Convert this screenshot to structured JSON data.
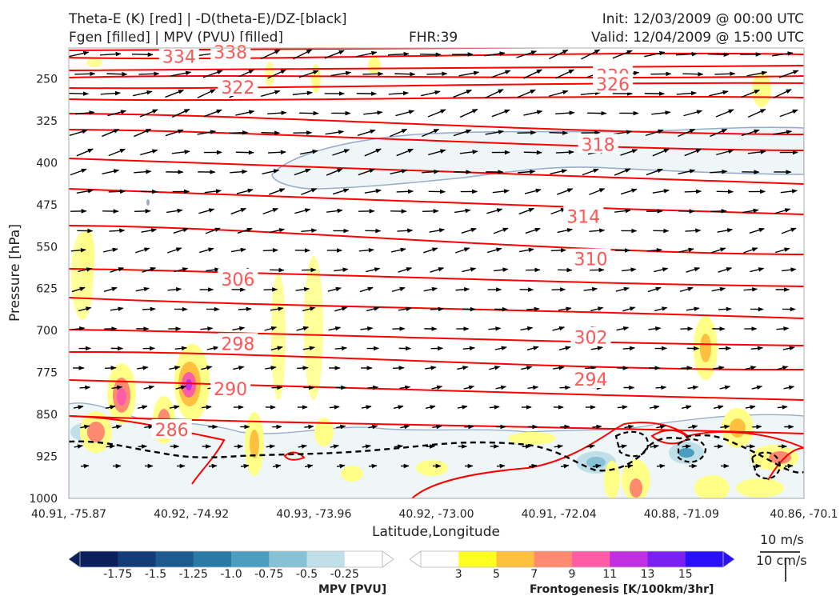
{
  "header": {
    "line1_left": "Theta-E (K) [red] | -D(theta-E)/DZ-[black]",
    "line2_left": "Fgen [filled] | MPV (PVU) [filled]",
    "fhr": "FHR:39",
    "init": "Init: 12/03/2009 @ 00:00 UTC",
    "valid": "Valid: 12/04/2009 @ 15:00 UTC"
  },
  "reference_vectors": {
    "horizontal": "10 m/s",
    "vertical": "10 cm/s"
  },
  "colors": {
    "theta_e": "#ff0000",
    "theta_e_label": "#ff5555",
    "stability": "#000000",
    "mpv_contour": "#9aaccc",
    "mpv_fill": "#eef6f7"
  },
  "chart_data": {
    "type": "cross-section",
    "title": "Theta-E (K) [red] | -D(theta-E)/DZ-[black]",
    "xlabel": "Latitude,Longitude",
    "ylabel": "Pressure [hPa]",
    "x_tick_labels": [
      "40.91, -75.87",
      "40.92, -74.92",
      "40.93, -73.96",
      "40.92, -73.00",
      "40.91, -72.04",
      "40.88, -71.09",
      "40.86, -70.1"
    ],
    "y_ticks": [
      250,
      325,
      400,
      475,
      550,
      625,
      700,
      775,
      850,
      925,
      1000
    ],
    "ylim": [
      1000,
      195
    ],
    "y_scale": "linear-inverted",
    "theta_e_labels": [
      {
        "text": "334",
        "x": 0.15,
        "p": 210
      },
      {
        "text": "338",
        "x": 0.22,
        "p": 202
      },
      {
        "text": "322",
        "x": 0.23,
        "p": 265
      },
      {
        "text": "330",
        "x": 0.74,
        "p": 244
      },
      {
        "text": "326",
        "x": 0.74,
        "p": 259
      },
      {
        "text": "318",
        "x": 0.72,
        "p": 367
      },
      {
        "text": "314",
        "x": 0.7,
        "p": 496
      },
      {
        "text": "310",
        "x": 0.71,
        "p": 572
      },
      {
        "text": "306",
        "x": 0.23,
        "p": 608
      },
      {
        "text": "302",
        "x": 0.71,
        "p": 712
      },
      {
        "text": "298",
        "x": 0.23,
        "p": 723
      },
      {
        "text": "294",
        "x": 0.71,
        "p": 787
      },
      {
        "text": "290",
        "x": 0.22,
        "p": 804
      },
      {
        "text": "286",
        "x": 0.14,
        "p": 877
      }
    ],
    "mpv_colorbar": {
      "label": "MPV [PVU]",
      "ticks": [
        "-1.75",
        "-1.5",
        "-1.25",
        "-1.0",
        "-0.75",
        "-0.5",
        "-0.25"
      ],
      "colors": [
        "#0a1f5c",
        "#123d7a",
        "#1c5a8f",
        "#2a7aa8",
        "#4b9ec0",
        "#86c1d6",
        "#bfe0e8",
        "#ffffff"
      ]
    },
    "fgen_colorbar": {
      "label": "Frontogenesis [K/100km/3hr]",
      "ticks": [
        "3",
        "5",
        "7",
        "9",
        "11",
        "13",
        "15"
      ],
      "colors": [
        "#ffffff",
        "#ffff22",
        "#ffc040",
        "#ff8a70",
        "#ff5ca8",
        "#c030e0",
        "#7a20f0",
        "#2a10f8"
      ]
    }
  }
}
